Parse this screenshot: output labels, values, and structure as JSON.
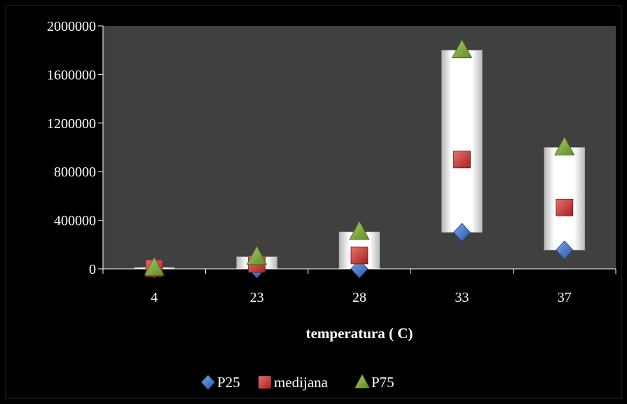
{
  "chart_data": {
    "type": "scatter",
    "categories": [
      "4",
      "23",
      "28",
      "33",
      "37"
    ],
    "series": [
      {
        "name": "P25",
        "values": [
          0,
          0,
          0,
          300000,
          155000
        ],
        "color": "#3b6fc4",
        "marker": "diamond"
      },
      {
        "name": "medijana",
        "values": [
          5000,
          40000,
          110000,
          900000,
          505000
        ],
        "color": "#c0302d",
        "marker": "square"
      },
      {
        "name": "P75",
        "values": [
          10000,
          100000,
          305000,
          1800000,
          1000000
        ],
        "color": "#7fa33a",
        "marker": "triangle"
      }
    ],
    "range_boxes": true,
    "y_ticks": [
      "0",
      "400000",
      "800000",
      "1200000",
      "1600000",
      "2000000"
    ],
    "ylim": [
      0,
      2000000
    ],
    "xlabel": "temperatura ( C)",
    "ylabel": "",
    "title": "",
    "legend_position": "bottom",
    "plot_background": "#404040",
    "page_background": "#000000"
  }
}
